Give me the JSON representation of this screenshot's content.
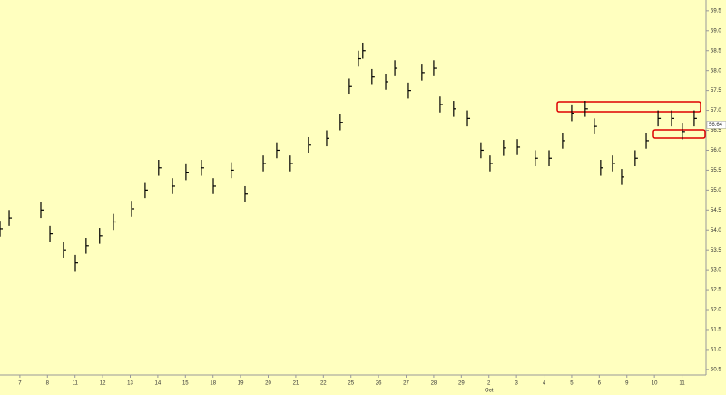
{
  "chart_data": {
    "type": "ohlc",
    "color": "#000000",
    "background": "#ffffbf",
    "x": [
      -0.72,
      -0.39,
      0.76,
      1.09,
      1.58,
      2.01,
      2.4,
      2.89,
      3.39,
      4.05,
      4.54,
      5.03,
      5.53,
      6.02,
      6.58,
      7.01,
      7.66,
      8.16,
      8.82,
      9.31,
      9.8,
      10.46,
      11.12,
      11.61,
      11.94,
      12.27,
      12.43,
      12.76,
      13.26,
      13.59,
      14.08,
      14.57,
      15.0,
      15.23,
      15.72,
      16.22,
      16.71,
      17.04,
      17.53,
      18.03,
      18.68,
      19.18,
      19.67,
      20.0,
      20.49,
      20.82,
      21.05,
      21.48,
      21.81,
      22.3,
      22.7,
      23.13,
      23.62,
      24.01,
      24.44
    ],
    "values": [
      54.03,
      54.3,
      54.5,
      53.9,
      53.5,
      53.17,
      53.6,
      53.85,
      54.2,
      54.53,
      55.0,
      55.56,
      55.1,
      55.45,
      55.56,
      55.1,
      55.5,
      54.9,
      55.67,
      56.0,
      55.67,
      56.13,
      56.3,
      56.7,
      57.6,
      58.3,
      58.5,
      57.84,
      57.72,
      58.06,
      57.5,
      57.95,
      58.06,
      57.15,
      57.04,
      56.8,
      56.0,
      55.67,
      56.06,
      56.08,
      55.8,
      55.8,
      56.24,
      56.93,
      57.04,
      56.6,
      55.56,
      55.67,
      55.33,
      55.8,
      56.24,
      56.8,
      56.8,
      56.47,
      56.8
    ],
    "high": [
      54.23,
      54.5,
      54.7,
      54.1,
      53.7,
      53.37,
      53.8,
      54.05,
      54.4,
      54.73,
      55.2,
      55.76,
      55.3,
      55.65,
      55.76,
      55.3,
      55.7,
      55.1,
      55.87,
      56.2,
      55.87,
      56.33,
      56.5,
      56.9,
      57.8,
      58.5,
      58.7,
      58.04,
      57.92,
      58.26,
      57.7,
      58.15,
      58.26,
      57.35,
      57.24,
      57.0,
      56.2,
      55.87,
      56.26,
      56.28,
      56.0,
      56.0,
      56.44,
      57.13,
      57.24,
      56.8,
      55.76,
      55.87,
      55.53,
      56.0,
      56.44,
      57.0,
      57.0,
      56.67,
      57.0
    ],
    "low": [
      53.83,
      54.1,
      54.3,
      53.7,
      53.3,
      52.97,
      53.4,
      53.65,
      54.0,
      54.33,
      54.8,
      55.36,
      54.9,
      55.25,
      55.36,
      54.9,
      55.3,
      54.7,
      55.47,
      55.8,
      55.47,
      55.93,
      56.1,
      56.5,
      57.4,
      58.1,
      58.3,
      57.64,
      57.52,
      57.86,
      57.3,
      57.75,
      57.86,
      56.95,
      56.84,
      56.6,
      55.8,
      55.47,
      55.86,
      55.88,
      55.6,
      55.6,
      56.04,
      56.73,
      56.84,
      56.4,
      55.36,
      55.47,
      55.13,
      55.6,
      56.04,
      56.6,
      56.6,
      56.27,
      56.6
    ],
    "xlim": [
      -0.72,
      24.87
    ],
    "xticks": [
      {
        "value": 0,
        "label": "7"
      },
      {
        "value": 1,
        "label": "8"
      },
      {
        "value": 2,
        "label": "11"
      },
      {
        "value": 3,
        "label": "12"
      },
      {
        "value": 4,
        "label": "13"
      },
      {
        "value": 5,
        "label": "14"
      },
      {
        "value": 6,
        "label": "15"
      },
      {
        "value": 7,
        "label": "18"
      },
      {
        "value": 8,
        "label": "19"
      },
      {
        "value": 9,
        "label": "20"
      },
      {
        "value": 10,
        "label": "21"
      },
      {
        "value": 11,
        "label": "22"
      },
      {
        "value": 12,
        "label": "25"
      },
      {
        "value": 13,
        "label": "26"
      },
      {
        "value": 14,
        "label": "27"
      },
      {
        "value": 15,
        "label": "28"
      },
      {
        "value": 16,
        "label": "29"
      },
      {
        "value": 17,
        "label": "2"
      },
      {
        "value": 18,
        "label": "3"
      },
      {
        "value": 19,
        "label": "4"
      },
      {
        "value": 20,
        "label": "5"
      },
      {
        "value": 21,
        "label": "6"
      },
      {
        "value": 22,
        "label": "9"
      },
      {
        "value": 23,
        "label": "10"
      },
      {
        "value": 24,
        "label": "11"
      }
    ],
    "month_label": "Oct",
    "ylim": [
      50.36,
      59.77
    ],
    "yticks": [
      50.5,
      {
        "value": 51,
        "label": "51.0"
      },
      51.5,
      {
        "value": 52,
        "label": "52.0"
      },
      52.5,
      {
        "value": 53,
        "label": "53.0"
      },
      53.5,
      {
        "value": 54,
        "label": "54.0"
      },
      54.5,
      {
        "value": 55,
        "label": "55.0"
      },
      55.5,
      {
        "value": 56,
        "label": "56.0"
      },
      56.5,
      {
        "value": 57,
        "label": "57.0"
      },
      57.5,
      {
        "value": 58,
        "label": "58.0"
      },
      58.5,
      {
        "value": 59,
        "label": "59.0"
      },
      59.5
    ],
    "last_price": 56.64
  }
}
